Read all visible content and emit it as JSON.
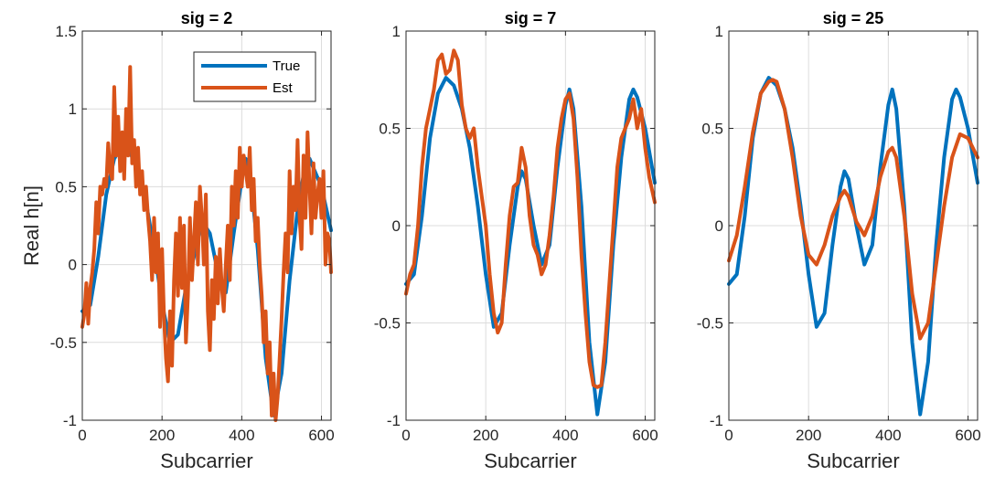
{
  "chart_data": [
    {
      "type": "line",
      "title": "sig = 2",
      "xlabel": "Subcarrier",
      "ylabel": "Real h[n]",
      "xlim": [
        0,
        624
      ],
      "ylim": [
        -1,
        1.5
      ],
      "xticks": [
        0,
        200,
        400,
        600
      ],
      "yticks": [
        -1,
        -0.5,
        0,
        0.5,
        1,
        1.5
      ],
      "xtick_labels": [
        "0",
        "200",
        "400",
        "600"
      ],
      "ytick_labels": [
        "-1",
        "-0.5",
        "0",
        "0.5",
        "1",
        "1.5"
      ],
      "grid": true,
      "legend": "top-right",
      "series": [
        {
          "name": "True",
          "color": "#0072BD",
          "x": [
            0,
            20,
            40,
            60,
            80,
            100,
            120,
            140,
            160,
            180,
            200,
            220,
            240,
            260,
            280,
            300,
            320,
            340,
            360,
            380,
            400,
            410,
            420,
            440,
            460,
            480,
            500,
            520,
            540,
            560,
            570,
            580,
            600,
            624
          ],
          "y": [
            -0.3,
            -0.26,
            0.05,
            0.45,
            0.68,
            0.76,
            0.72,
            0.6,
            0.4,
            0.1,
            -0.25,
            -0.5,
            -0.45,
            -0.15,
            0.05,
            0.28,
            0.2,
            -0.05,
            -0.18,
            0.2,
            0.55,
            0.68,
            0.6,
            0.1,
            -0.6,
            -0.97,
            -0.7,
            -0.1,
            0.35,
            0.65,
            0.68,
            0.62,
            0.5,
            0.22
          ]
        },
        {
          "name": "Est",
          "color": "#D95319",
          "x": [
            0,
            5,
            10,
            15,
            20,
            25,
            30,
            35,
            40,
            45,
            50,
            55,
            60,
            65,
            70,
            75,
            80,
            85,
            90,
            95,
            100,
            105,
            110,
            115,
            120,
            125,
            130,
            135,
            140,
            145,
            150,
            155,
            160,
            165,
            170,
            175,
            180,
            185,
            190,
            195,
            200,
            205,
            210,
            215,
            220,
            225,
            230,
            235,
            240,
            245,
            250,
            255,
            260,
            265,
            270,
            275,
            280,
            285,
            290,
            295,
            300,
            305,
            310,
            315,
            320,
            325,
            330,
            335,
            340,
            345,
            350,
            355,
            360,
            365,
            370,
            375,
            380,
            385,
            390,
            395,
            400,
            405,
            410,
            415,
            420,
            425,
            430,
            435,
            440,
            445,
            450,
            455,
            460,
            465,
            470,
            475,
            480,
            485,
            490,
            495,
            500,
            505,
            510,
            515,
            520,
            525,
            530,
            535,
            540,
            545,
            550,
            555,
            560,
            565,
            570,
            575,
            580,
            585,
            590,
            595,
            600,
            605,
            610,
            615,
            620,
            624
          ],
          "y": [
            -0.4,
            -0.32,
            -0.12,
            -0.38,
            -0.15,
            -0.05,
            0.1,
            0.4,
            0.2,
            0.5,
            0.45,
            0.55,
            0.5,
            0.78,
            0.6,
            0.55,
            1.14,
            0.7,
            0.95,
            0.6,
            0.85,
            0.55,
            1.0,
            0.7,
            1.27,
            0.65,
            0.8,
            0.5,
            0.75,
            0.45,
            0.6,
            0.35,
            0.5,
            0.3,
            0.15,
            -0.1,
            0.3,
            -0.05,
            0.2,
            -0.4,
            0.1,
            -0.35,
            -0.6,
            -0.75,
            -0.3,
            -0.65,
            -0.1,
            0.2,
            -0.2,
            0.3,
            -0.15,
            0.25,
            -0.5,
            -0.2,
            0.3,
            -0.1,
            0.15,
            0.4,
            0.0,
            0.5,
            0.3,
            0.0,
            0.45,
            -0.3,
            -0.55,
            -0.1,
            -0.35,
            0.05,
            -0.25,
            0.1,
            -0.15,
            -0.3,
            0.0,
            0.25,
            -0.1,
            0.5,
            0.25,
            0.6,
            0.3,
            0.75,
            0.5,
            0.7,
            0.6,
            0.5,
            0.75,
            0.35,
            0.55,
            0.15,
            0.3,
            0.0,
            -0.2,
            -0.5,
            -0.3,
            -0.7,
            -0.5,
            -0.97,
            -0.7,
            -1.0,
            -0.85,
            -0.6,
            -0.35,
            -0.05,
            0.2,
            -0.05,
            0.6,
            0.2,
            0.5,
            0.35,
            0.8,
            0.3,
            0.1,
            0.7,
            0.3,
            0.85,
            0.5,
            0.2,
            0.65,
            0.3,
            0.45,
            0.55,
            0.3,
            0.6,
            0.0,
            0.2,
            0.15,
            -0.05
          ]
        }
      ]
    },
    {
      "type": "line",
      "title": "sig = 7",
      "xlabel": "Subcarrier",
      "ylabel": "",
      "xlim": [
        0,
        624
      ],
      "ylim": [
        -1,
        1
      ],
      "xticks": [
        0,
        200,
        400,
        600
      ],
      "yticks": [
        -1,
        -0.5,
        0,
        0.5,
        1
      ],
      "xtick_labels": [
        "0",
        "200",
        "400",
        "600"
      ],
      "ytick_labels": [
        "-1",
        "-0.5",
        "0",
        "0.5",
        "1"
      ],
      "grid": true,
      "series": [
        {
          "name": "True",
          "color": "#0072BD",
          "x": [
            0,
            20,
            40,
            60,
            80,
            100,
            120,
            140,
            160,
            180,
            200,
            220,
            240,
            260,
            280,
            290,
            300,
            320,
            340,
            360,
            380,
            400,
            410,
            420,
            440,
            460,
            480,
            500,
            520,
            540,
            560,
            570,
            580,
            600,
            624
          ],
          "y": [
            -0.3,
            -0.25,
            0.05,
            0.45,
            0.68,
            0.76,
            0.72,
            0.6,
            0.4,
            0.1,
            -0.25,
            -0.52,
            -0.45,
            -0.1,
            0.2,
            0.28,
            0.24,
            0.0,
            -0.2,
            -0.1,
            0.3,
            0.62,
            0.7,
            0.6,
            0.1,
            -0.6,
            -0.97,
            -0.7,
            -0.1,
            0.35,
            0.65,
            0.7,
            0.66,
            0.5,
            0.22
          ]
        },
        {
          "name": "Est",
          "color": "#D95319",
          "x": [
            0,
            10,
            20,
            30,
            40,
            50,
            60,
            70,
            80,
            90,
            100,
            110,
            120,
            130,
            140,
            150,
            160,
            170,
            180,
            190,
            200,
            210,
            220,
            230,
            240,
            250,
            260,
            270,
            280,
            290,
            300,
            310,
            320,
            330,
            340,
            350,
            360,
            370,
            380,
            390,
            400,
            410,
            420,
            430,
            440,
            450,
            460,
            470,
            480,
            490,
            500,
            510,
            520,
            530,
            540,
            550,
            560,
            570,
            580,
            590,
            600,
            610,
            624
          ],
          "y": [
            -0.35,
            -0.25,
            -0.2,
            0.0,
            0.3,
            0.5,
            0.6,
            0.7,
            0.85,
            0.88,
            0.78,
            0.8,
            0.9,
            0.85,
            0.62,
            0.5,
            0.45,
            0.5,
            0.3,
            0.15,
            0.0,
            -0.25,
            -0.45,
            -0.55,
            -0.5,
            -0.2,
            0.05,
            0.2,
            0.22,
            0.4,
            0.3,
            0.05,
            -0.1,
            -0.15,
            -0.25,
            -0.2,
            -0.05,
            0.15,
            0.4,
            0.55,
            0.65,
            0.68,
            0.55,
            0.25,
            -0.15,
            -0.45,
            -0.7,
            -0.82,
            -0.83,
            -0.82,
            -0.6,
            -0.3,
            0.0,
            0.3,
            0.45,
            0.5,
            0.55,
            0.65,
            0.5,
            0.6,
            0.4,
            0.25,
            0.12
          ]
        }
      ]
    },
    {
      "type": "line",
      "title": "sig = 25",
      "xlabel": "Subcarrier",
      "ylabel": "",
      "xlim": [
        0,
        624
      ],
      "ylim": [
        -1,
        1
      ],
      "xticks": [
        0,
        200,
        400,
        600
      ],
      "yticks": [
        -1,
        -0.5,
        0,
        0.5,
        1
      ],
      "xtick_labels": [
        "0",
        "200",
        "400",
        "600"
      ],
      "ytick_labels": [
        "-1",
        "-0.5",
        "0",
        "0.5",
        "1"
      ],
      "grid": true,
      "series": [
        {
          "name": "True",
          "color": "#0072BD",
          "x": [
            0,
            20,
            40,
            60,
            80,
            100,
            120,
            140,
            160,
            180,
            200,
            220,
            240,
            260,
            280,
            290,
            300,
            320,
            340,
            360,
            380,
            400,
            410,
            420,
            440,
            460,
            480,
            500,
            520,
            540,
            560,
            570,
            580,
            600,
            624
          ],
          "y": [
            -0.3,
            -0.25,
            0.05,
            0.45,
            0.68,
            0.76,
            0.72,
            0.6,
            0.4,
            0.1,
            -0.25,
            -0.52,
            -0.45,
            -0.1,
            0.2,
            0.28,
            0.24,
            0.0,
            -0.2,
            -0.1,
            0.3,
            0.62,
            0.7,
            0.6,
            0.1,
            -0.6,
            -0.97,
            -0.7,
            -0.1,
            0.35,
            0.65,
            0.7,
            0.66,
            0.5,
            0.22
          ]
        },
        {
          "name": "Est",
          "color": "#D95319",
          "x": [
            0,
            20,
            40,
            60,
            80,
            100,
            110,
            120,
            140,
            160,
            180,
            200,
            220,
            240,
            260,
            280,
            290,
            300,
            320,
            340,
            360,
            380,
            400,
            410,
            420,
            440,
            460,
            480,
            500,
            520,
            540,
            560,
            580,
            600,
            624
          ],
          "y": [
            -0.18,
            -0.05,
            0.2,
            0.48,
            0.68,
            0.74,
            0.75,
            0.74,
            0.6,
            0.35,
            0.05,
            -0.15,
            -0.2,
            -0.1,
            0.05,
            0.15,
            0.18,
            0.15,
            0.02,
            -0.05,
            0.05,
            0.25,
            0.38,
            0.4,
            0.35,
            0.05,
            -0.35,
            -0.58,
            -0.5,
            -0.2,
            0.1,
            0.35,
            0.47,
            0.45,
            0.35
          ]
        }
      ]
    }
  ]
}
